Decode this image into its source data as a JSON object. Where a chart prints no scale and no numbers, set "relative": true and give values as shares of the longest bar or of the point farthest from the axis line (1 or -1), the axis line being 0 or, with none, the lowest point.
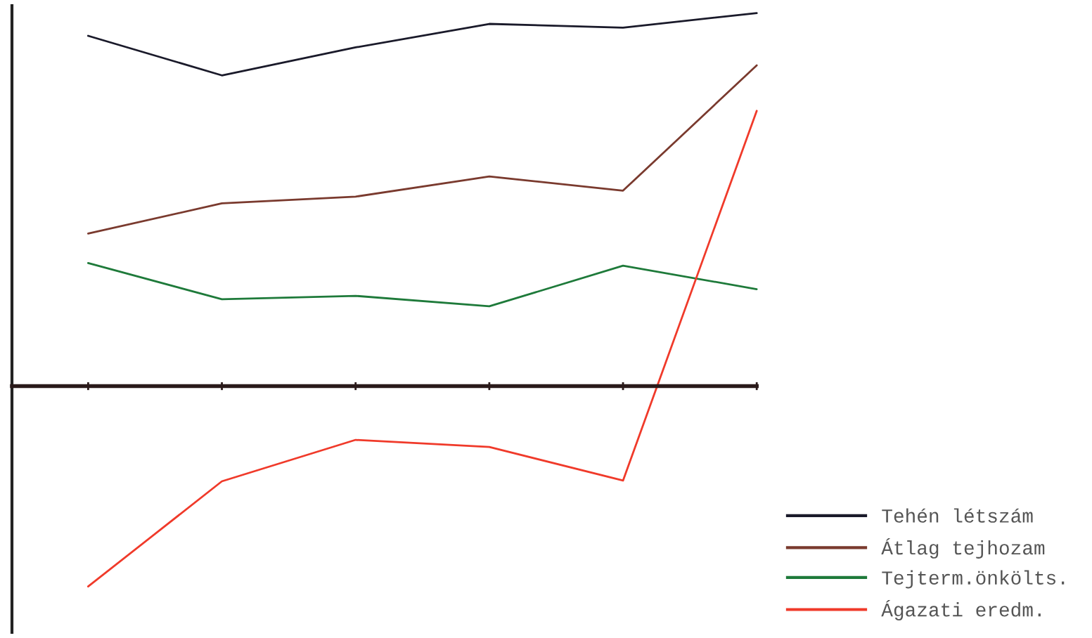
{
  "chart_data": {
    "type": "line",
    "relative": true,
    "categories": [
      null,
      null,
      null,
      null,
      null,
      null
    ],
    "legend": "bottom right",
    "grid": false,
    "marker": "none",
    "line_style": "solid",
    "series": [
      {
        "name": "Tehén létszám",
        "color": "#1a1a2a",
        "values": [
          0.939,
          0.833,
          0.908,
          0.971,
          0.961,
          1
        ]
      },
      {
        "name": "Átlag tejhozam",
        "color": "#7a3a2e",
        "values": [
          0.409,
          0.49,
          0.508,
          0.562,
          0.524,
          0.86
        ]
      },
      {
        "name": "Tejterm.önkölts.",
        "color": "#1e7a3a",
        "values": [
          0.33,
          0.233,
          0.242,
          0.214,
          0.323,
          0.26
        ]
      },
      {
        "name": "Ágazati eredm.",
        "color": "#f03a2a",
        "values": [
          -0.537,
          -0.255,
          -0.144,
          -0.163,
          -0.253,
          0.738
        ]
      }
    ]
  }
}
